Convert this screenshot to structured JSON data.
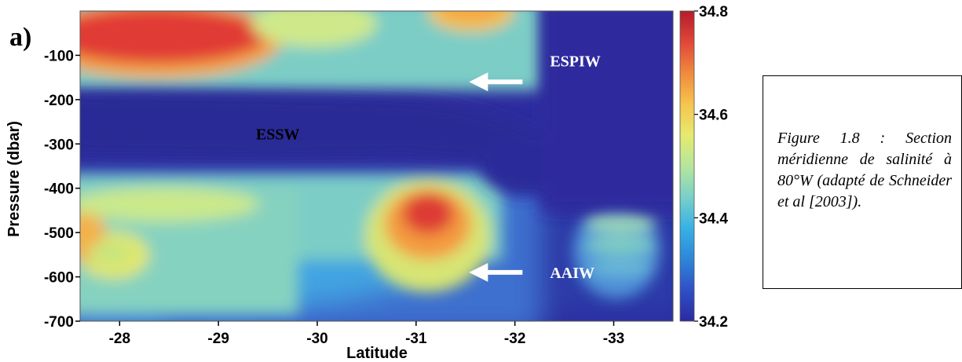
{
  "panel_label": "a)",
  "caption": "Figure 1.8 : Section méridienne de salinité à 80°W (adapté de Schneider et al [2003]).",
  "chart_data": {
    "type": "heatmap",
    "title": "",
    "xlabel": "Latitude",
    "ylabel": "Pressure (dbar)",
    "xlim": [
      -27.6,
      -33.6
    ],
    "ylim": [
      0,
      -700
    ],
    "x_ticks": [
      -28,
      -29,
      -30,
      -31,
      -32,
      -33
    ],
    "x_tick_labels": [
      "-28",
      "-29",
      "-30",
      "-31",
      "-32",
      "-33"
    ],
    "y_ticks": [
      -100,
      -200,
      -300,
      -400,
      -500,
      -600,
      -700
    ],
    "y_tick_labels": [
      "-100",
      "-200",
      "-300",
      "-400",
      "-500",
      "-600",
      "-700"
    ],
    "colorbar": {
      "range": [
        34.2,
        34.8
      ],
      "ticks": [
        34.8,
        34.6,
        34.4,
        34.2
      ],
      "tick_labels": [
        "34.8",
        "34.6",
        "34.4",
        "34.2"
      ],
      "colors": [
        "#2b2aa0",
        "#2f50c6",
        "#2e86d8",
        "#37b1e6",
        "#7ad0c8",
        "#b5e69c",
        "#e6ea6e",
        "#f6c44e",
        "#f08a3c",
        "#e2463a",
        "#b21d2a"
      ]
    },
    "water_masses": [
      {
        "name": "ESPIW",
        "latitude": -31.6,
        "pressure": -160,
        "arrow": true
      },
      {
        "name": "ESSW",
        "latitude": -29.6,
        "pressure": -290,
        "arrow": false
      },
      {
        "name": "AAIW",
        "latitude": -31.6,
        "pressure": -590,
        "arrow": true
      }
    ],
    "grid": false
  }
}
